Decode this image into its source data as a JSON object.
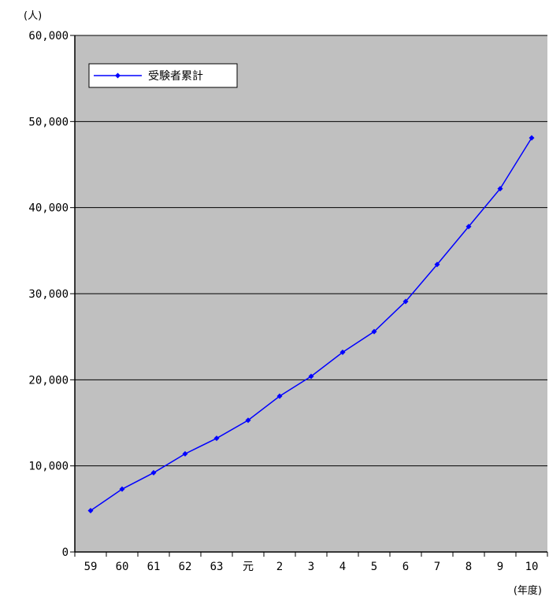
{
  "chart_data": {
    "type": "line",
    "title": "",
    "y_unit_label": "(人)",
    "x_unit_label": "(年度)",
    "categories": [
      "59",
      "60",
      "61",
      "62",
      "63",
      "元",
      "2",
      "3",
      "4",
      "5",
      "6",
      "7",
      "8",
      "9",
      "10"
    ],
    "series": [
      {
        "name": "受験者累計",
        "values": [
          4800,
          7300,
          9200,
          11400,
          13200,
          15300,
          18100,
          20400,
          23200,
          25600,
          29100,
          33400,
          37800,
          42200,
          48100
        ]
      }
    ],
    "y_ticks": [
      "0",
      "10,000",
      "20,000",
      "30,000",
      "40,000",
      "50,000",
      "60,000"
    ],
    "ylim": [
      0,
      60000
    ],
    "grid": true,
    "legend": "top-left",
    "plot_background": "#c0c0c0",
    "series_color": "#0000ff"
  }
}
